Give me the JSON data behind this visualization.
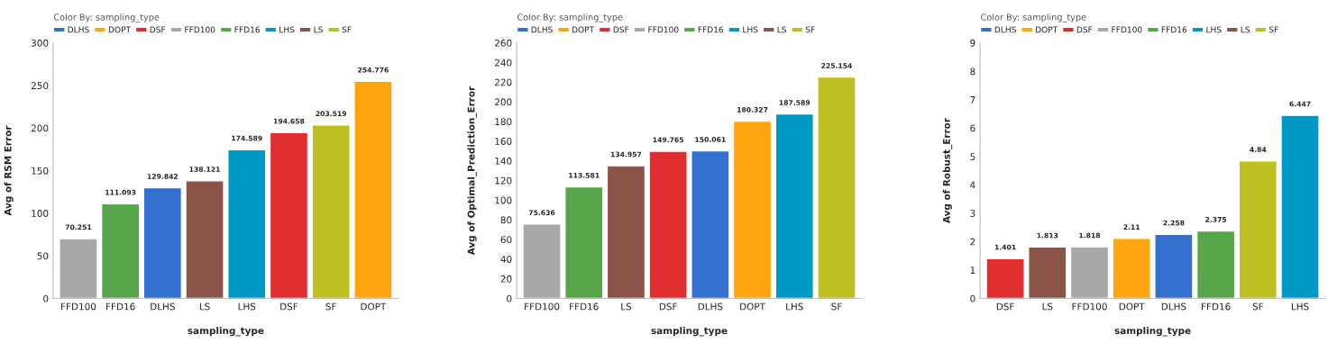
{
  "chart_data": [
    {
      "type": "bar",
      "xlabel": "sampling_type",
      "ylabel": "Avg of RSM Error",
      "legend_title": "Color By: sampling_type",
      "legend": "top left",
      "data_labels": true,
      "grid": false,
      "categories": [
        "FFD100",
        "FFD16",
        "DLHS",
        "LS",
        "LHS",
        "DSF",
        "SF",
        "DOPT"
      ],
      "ylim": [
        0,
        300
      ],
      "yticks": [
        0,
        50,
        100,
        150,
        200,
        250,
        300
      ],
      "series": [
        {
          "name": "DLHS",
          "color": "#3370d0",
          "values": [
            null,
            null,
            129.842,
            null,
            null,
            null,
            null,
            null
          ]
        },
        {
          "name": "DOPT",
          "color": "#ffa510",
          "values": [
            null,
            null,
            null,
            null,
            null,
            null,
            null,
            254.776
          ]
        },
        {
          "name": "DSF",
          "color": "#e02d2d",
          "values": [
            null,
            null,
            null,
            null,
            null,
            194.658,
            null,
            null
          ]
        },
        {
          "name": "FFD100",
          "color": "#a8a8a8",
          "values": [
            70.251,
            null,
            null,
            null,
            null,
            null,
            null,
            null
          ]
        },
        {
          "name": "FFD16",
          "color": "#58a64a",
          "values": [
            null,
            111.093,
            null,
            null,
            null,
            null,
            null,
            null
          ]
        },
        {
          "name": "LHS",
          "color": "#0099c6",
          "values": [
            null,
            null,
            null,
            null,
            174.589,
            null,
            null,
            null
          ]
        },
        {
          "name": "LS",
          "color": "#8b5448",
          "values": [
            null,
            null,
            null,
            138.121,
            null,
            null,
            null,
            null
          ]
        },
        {
          "name": "SF",
          "color": "#bdbf22",
          "values": [
            null,
            null,
            null,
            null,
            null,
            null,
            203.519,
            null
          ]
        }
      ]
    },
    {
      "type": "bar",
      "xlabel": "sampling_type",
      "ylabel": "Avg of Optimal_Prediction_Error",
      "legend_title": "Color By: sampling_type",
      "legend": "top left",
      "data_labels": true,
      "grid": false,
      "categories": [
        "FFD100",
        "FFD16",
        "LS",
        "DSF",
        "DLHS",
        "DOPT",
        "LHS",
        "SF"
      ],
      "ylim": [
        0,
        260
      ],
      "yticks": [
        0,
        20,
        40,
        60,
        80,
        100,
        120,
        140,
        160,
        180,
        200,
        220,
        240,
        260
      ],
      "series": [
        {
          "name": "DLHS",
          "color": "#3370d0",
          "values": [
            null,
            null,
            null,
            null,
            150.061,
            null,
            null,
            null
          ]
        },
        {
          "name": "DOPT",
          "color": "#ffa510",
          "values": [
            null,
            null,
            null,
            null,
            null,
            180.327,
            null,
            null
          ]
        },
        {
          "name": "DSF",
          "color": "#e02d2d",
          "values": [
            null,
            null,
            null,
            149.765,
            null,
            null,
            null,
            null
          ]
        },
        {
          "name": "FFD100",
          "color": "#a8a8a8",
          "values": [
            75.636,
            null,
            null,
            null,
            null,
            null,
            null,
            null
          ]
        },
        {
          "name": "FFD16",
          "color": "#58a64a",
          "values": [
            null,
            113.581,
            null,
            null,
            null,
            null,
            null,
            null
          ]
        },
        {
          "name": "LHS",
          "color": "#0099c6",
          "values": [
            null,
            null,
            null,
            null,
            null,
            null,
            187.589,
            null
          ]
        },
        {
          "name": "LS",
          "color": "#8b5448",
          "values": [
            null,
            null,
            134.957,
            null,
            null,
            null,
            null,
            null
          ]
        },
        {
          "name": "SF",
          "color": "#bdbf22",
          "values": [
            null,
            null,
            null,
            null,
            null,
            null,
            null,
            225.154
          ]
        }
      ]
    },
    {
      "type": "bar",
      "xlabel": "sampling_type",
      "ylabel": "Avg of Robust_Error",
      "legend_title": "Color By: sampling_type",
      "legend": "top left",
      "data_labels": true,
      "grid": false,
      "categories": [
        "DSF",
        "LS",
        "FFD100",
        "DOPT",
        "DLHS",
        "FFD16",
        "SF",
        "LHS"
      ],
      "ylim": [
        0,
        9
      ],
      "yticks": [
        0,
        1,
        2,
        3,
        4,
        5,
        6,
        7,
        8,
        9
      ],
      "series": [
        {
          "name": "DLHS",
          "color": "#3370d0",
          "values": [
            null,
            null,
            null,
            null,
            2.258,
            null,
            null,
            null
          ]
        },
        {
          "name": "DOPT",
          "color": "#ffa510",
          "values": [
            null,
            null,
            null,
            2.11,
            null,
            null,
            null,
            null
          ]
        },
        {
          "name": "DSF",
          "color": "#e02d2d",
          "values": [
            1.401,
            null,
            null,
            null,
            null,
            null,
            null,
            null
          ]
        },
        {
          "name": "FFD100",
          "color": "#a8a8a8",
          "values": [
            null,
            null,
            1.818,
            null,
            null,
            null,
            null,
            null
          ]
        },
        {
          "name": "FFD16",
          "color": "#58a64a",
          "values": [
            null,
            null,
            null,
            null,
            null,
            2.375,
            null,
            null
          ]
        },
        {
          "name": "LHS",
          "color": "#0099c6",
          "values": [
            null,
            null,
            null,
            null,
            null,
            null,
            null,
            6.447
          ]
        },
        {
          "name": "LS",
          "color": "#8b5448",
          "values": [
            null,
            1.813,
            null,
            null,
            null,
            null,
            null,
            null
          ]
        },
        {
          "name": "SF",
          "color": "#bdbf22",
          "values": [
            null,
            null,
            null,
            null,
            null,
            null,
            4.84,
            null
          ]
        }
      ]
    }
  ]
}
